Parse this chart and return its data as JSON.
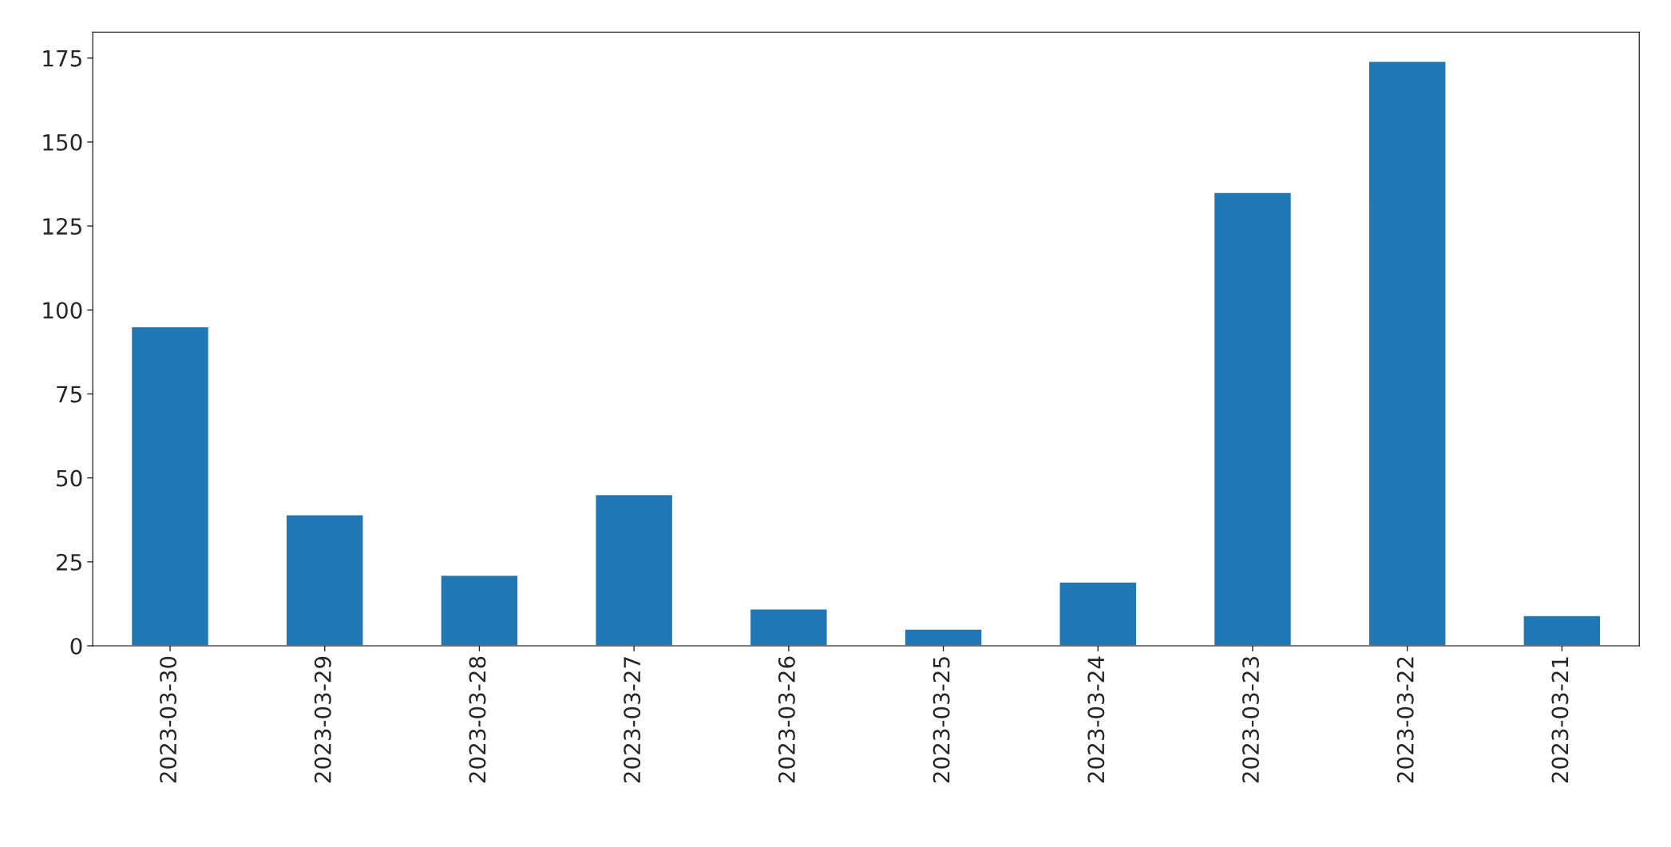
{
  "chart_data": {
    "type": "bar",
    "categories": [
      "2023-03-30",
      "2023-03-29",
      "2023-03-28",
      "2023-03-27",
      "2023-03-26",
      "2023-03-25",
      "2023-03-24",
      "2023-03-23",
      "2023-03-22",
      "2023-03-21"
    ],
    "values": [
      95,
      39,
      21,
      45,
      11,
      5,
      19,
      135,
      174,
      9
    ],
    "color": "#1f77b4",
    "ylim": [
      0,
      182.7
    ],
    "yticks": [
      0,
      25,
      50,
      75,
      100,
      125,
      150,
      175
    ],
    "grid": false,
    "legend": false
  }
}
